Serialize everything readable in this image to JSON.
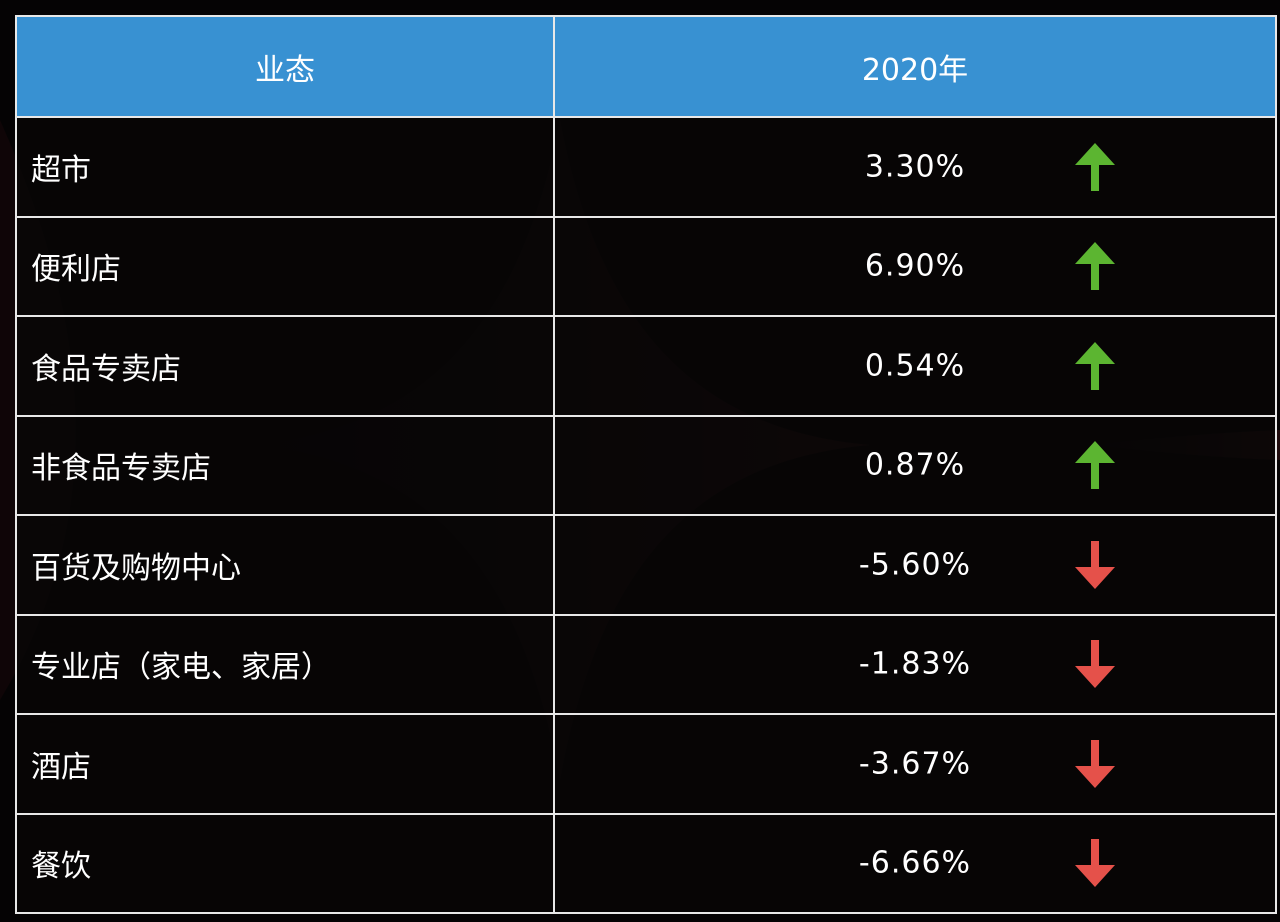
{
  "colors": {
    "header_bg": "#3891d2",
    "up": "#5cb531",
    "down": "#e5514a",
    "text": "#ffffff",
    "border": "#e8e8e8"
  },
  "chart_data": {
    "type": "table",
    "columns": [
      "业态",
      "2020年"
    ],
    "rows": [
      {
        "category": "超市",
        "value": "3.30%",
        "trend": "up"
      },
      {
        "category": "便利店",
        "value": "6.90%",
        "trend": "up"
      },
      {
        "category": "食品专卖店",
        "value": "0.54%",
        "trend": "up"
      },
      {
        "category": "非食品专卖店",
        "value": "0.87%",
        "trend": "up"
      },
      {
        "category": "百货及购物中心",
        "value": "-5.60%",
        "trend": "down"
      },
      {
        "category": "专业店（家电、家居）",
        "value": "-1.83%",
        "trend": "down"
      },
      {
        "category": "酒店",
        "value": "-3.67%",
        "trend": "down"
      },
      {
        "category": "餐饮",
        "value": "-6.66%",
        "trend": "down"
      }
    ]
  }
}
